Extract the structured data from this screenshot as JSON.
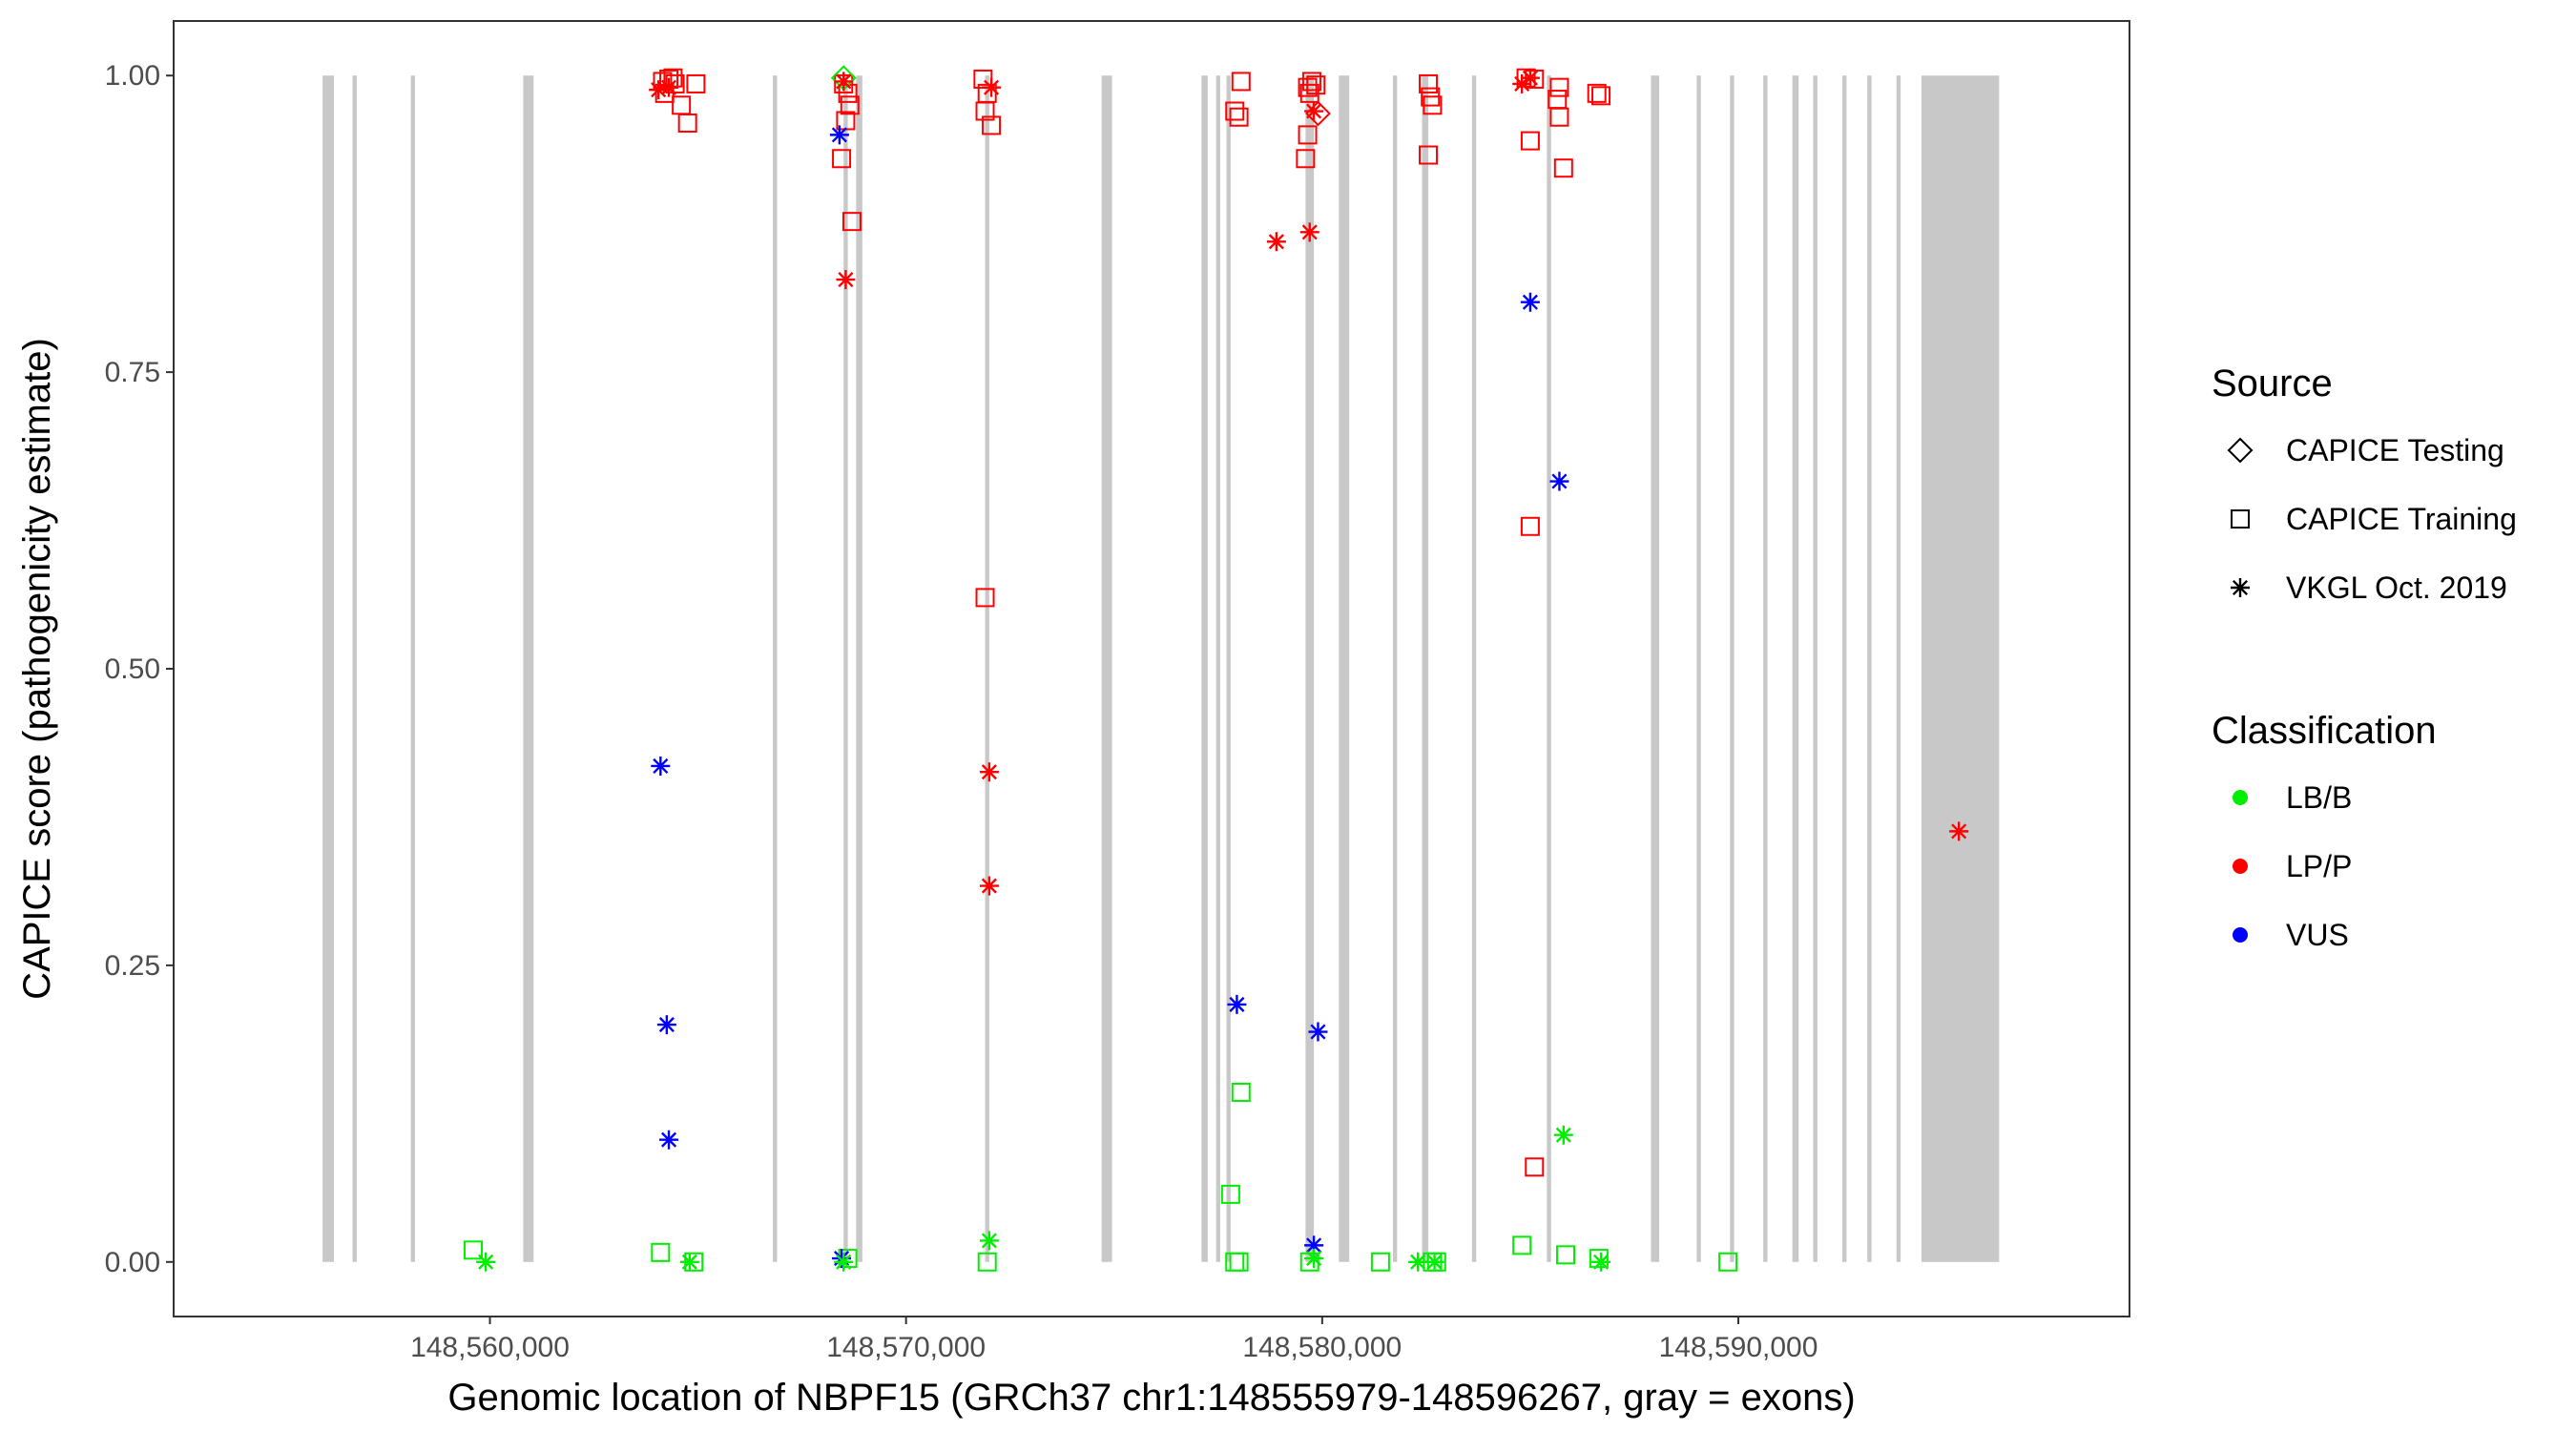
{
  "chart_data": {
    "type": "scatter",
    "xlabel": "Genomic location of NBPF15 (GRCh37 chr1:148555979-148596267, gray = exons)",
    "ylabel": "CAPICE score (pathogenicity estimate)",
    "xlim": [
      148552400,
      148599400
    ],
    "ylim": [
      -0.046,
      1.046
    ],
    "x_ticks": [
      148560000,
      148570000,
      148580000,
      148590000
    ],
    "x_tick_labels": [
      "148,560,000",
      "148,570,000",
      "148,580,000",
      "148,590,000"
    ],
    "y_ticks": [
      0,
      0.25,
      0.5,
      0.75,
      1
    ],
    "y_tick_labels": [
      "0.00",
      "0.25",
      "0.50",
      "0.75",
      "1.00"
    ],
    "grid": false,
    "exons": [
      [
        148555979,
        148556250
      ],
      [
        148556700,
        148556800
      ],
      [
        148558100,
        148558200
      ],
      [
        148560800,
        148561050
      ],
      [
        148566800,
        148566900
      ],
      [
        148568500,
        148568600
      ],
      [
        148568800,
        148568950
      ],
      [
        148571900,
        148572000
      ],
      [
        148574700,
        148574950
      ],
      [
        148577100,
        148577250
      ],
      [
        148577450,
        148577550
      ],
      [
        148577700,
        148577800
      ],
      [
        148579600,
        148579800
      ],
      [
        148580400,
        148580650
      ],
      [
        148581700,
        148581800
      ],
      [
        148582400,
        148582550
      ],
      [
        148583600,
        148583700
      ],
      [
        148585400,
        148585500
      ],
      [
        148587900,
        148588100
      ],
      [
        148589000,
        148589100
      ],
      [
        148589800,
        148589900
      ],
      [
        148590600,
        148590700
      ],
      [
        148591300,
        148591450
      ],
      [
        148591800,
        148591900
      ],
      [
        148592500,
        148592600
      ],
      [
        148593100,
        148593200
      ],
      [
        148593800,
        148593900
      ],
      [
        148594400,
        148596267
      ]
    ],
    "exon_color": "#c8c8c8",
    "legend_position": "right",
    "legend": {
      "source_title": "Source",
      "source_items": [
        {
          "label": "CAPICE Testing",
          "shape": "diamond"
        },
        {
          "label": "CAPICE Training",
          "shape": "square"
        },
        {
          "label": "VKGL Oct. 2019",
          "shape": "asterisk"
        }
      ],
      "class_title": "Classification",
      "class_items": [
        {
          "label": "LB/B",
          "color": "#00ee00"
        },
        {
          "label": "LP/P",
          "color": "#ff0000"
        },
        {
          "label": "VUS",
          "color": "#0000ff"
        }
      ]
    },
    "series": [
      {
        "source": "CAPICE Training",
        "classification": "LP/P",
        "points": [
          [
            148564150,
            0.995
          ],
          [
            148564300,
            0.997
          ],
          [
            148564450,
            0.993
          ],
          [
            148564200,
            0.985
          ],
          [
            148564600,
            0.975
          ],
          [
            148564750,
            0.96
          ],
          [
            148564400,
            0.998
          ],
          [
            148564950,
            0.993
          ],
          [
            148568500,
            0.993
          ],
          [
            148568600,
            0.985
          ],
          [
            148568650,
            0.975
          ],
          [
            148568550,
            0.962
          ],
          [
            148568450,
            0.93
          ],
          [
            148568700,
            0.877
          ],
          [
            148571850,
            0.997
          ],
          [
            148571950,
            0.985
          ],
          [
            148571900,
            0.97
          ],
          [
            148572050,
            0.958
          ],
          [
            148571900,
            0.56
          ],
          [
            148578050,
            0.995
          ],
          [
            148577900,
            0.97
          ],
          [
            148578000,
            0.965
          ],
          [
            148579650,
            0.99
          ],
          [
            148579750,
            0.995
          ],
          [
            148579850,
            0.992
          ],
          [
            148579700,
            0.985
          ],
          [
            148579650,
            0.95
          ],
          [
            148579600,
            0.93
          ],
          [
            148582550,
            0.993
          ],
          [
            148582600,
            0.982
          ],
          [
            148582650,
            0.975
          ],
          [
            148582550,
            0.933
          ],
          [
            148584900,
            0.998
          ],
          [
            148585100,
            0.997
          ],
          [
            148585000,
            0.945
          ],
          [
            148585000,
            0.62
          ],
          [
            148585700,
            0.99
          ],
          [
            148585650,
            0.98
          ],
          [
            148585700,
            0.965
          ],
          [
            148585800,
            0.922
          ],
          [
            148586600,
            0.985
          ],
          [
            148586700,
            0.983
          ],
          [
            148585100,
            0.08
          ]
        ]
      },
      {
        "source": "CAPICE Training",
        "classification": "LB/B",
        "points": [
          [
            148559600,
            0.01
          ],
          [
            148564100,
            0.008
          ],
          [
            148564900,
            0.0
          ],
          [
            148568600,
            0.003
          ],
          [
            148571950,
            0.0
          ],
          [
            148577800,
            0.057
          ],
          [
            148577900,
            0.0
          ],
          [
            148578000,
            0.0
          ],
          [
            148578050,
            0.143
          ],
          [
            148579700,
            0.0
          ],
          [
            148581400,
            0.0
          ],
          [
            148582650,
            0.0
          ],
          [
            148582750,
            0.0
          ],
          [
            148584800,
            0.014
          ],
          [
            148585850,
            0.006
          ],
          [
            148586650,
            0.003
          ],
          [
            148589750,
            0.0
          ]
        ]
      },
      {
        "source": "CAPICE Testing",
        "classification": "LP/P",
        "points": [
          [
            148579900,
            0.968
          ]
        ]
      },
      {
        "source": "CAPICE Testing",
        "classification": "LB/B",
        "points": [
          [
            148568500,
            0.998
          ]
        ]
      },
      {
        "source": "VKGL Oct. 2019",
        "classification": "LP/P",
        "points": [
          [
            148564050,
            0.988
          ],
          [
            148564300,
            0.99
          ],
          [
            148568500,
            0.995
          ],
          [
            148568550,
            0.828
          ],
          [
            148572050,
            0.99
          ],
          [
            148572000,
            0.413
          ],
          [
            148572000,
            0.317
          ],
          [
            148578900,
            0.86
          ],
          [
            148579700,
            0.868
          ],
          [
            148579800,
            0.97
          ],
          [
            148584800,
            0.993
          ],
          [
            148585000,
            0.998
          ],
          [
            148595300,
            0.363
          ]
        ]
      },
      {
        "source": "VKGL Oct. 2019",
        "classification": "VUS",
        "points": [
          [
            148564100,
            0.418
          ],
          [
            148564250,
            0.2
          ],
          [
            148564300,
            0.103
          ],
          [
            148568400,
            0.95
          ],
          [
            148568450,
            0.003
          ],
          [
            148577950,
            0.217
          ],
          [
            148579900,
            0.194
          ],
          [
            148579800,
            0.014
          ],
          [
            148585000,
            0.809
          ],
          [
            148585700,
            0.658
          ]
        ]
      },
      {
        "source": "VKGL Oct. 2019",
        "classification": "LB/B",
        "points": [
          [
            148559900,
            0.0
          ],
          [
            148564800,
            0.0
          ],
          [
            148572000,
            0.018
          ],
          [
            148568500,
            0.0
          ],
          [
            148579800,
            0.003
          ],
          [
            148582300,
            0.0
          ],
          [
            148582700,
            0.0
          ],
          [
            148585800,
            0.107
          ],
          [
            148586700,
            0.0
          ]
        ]
      }
    ]
  }
}
